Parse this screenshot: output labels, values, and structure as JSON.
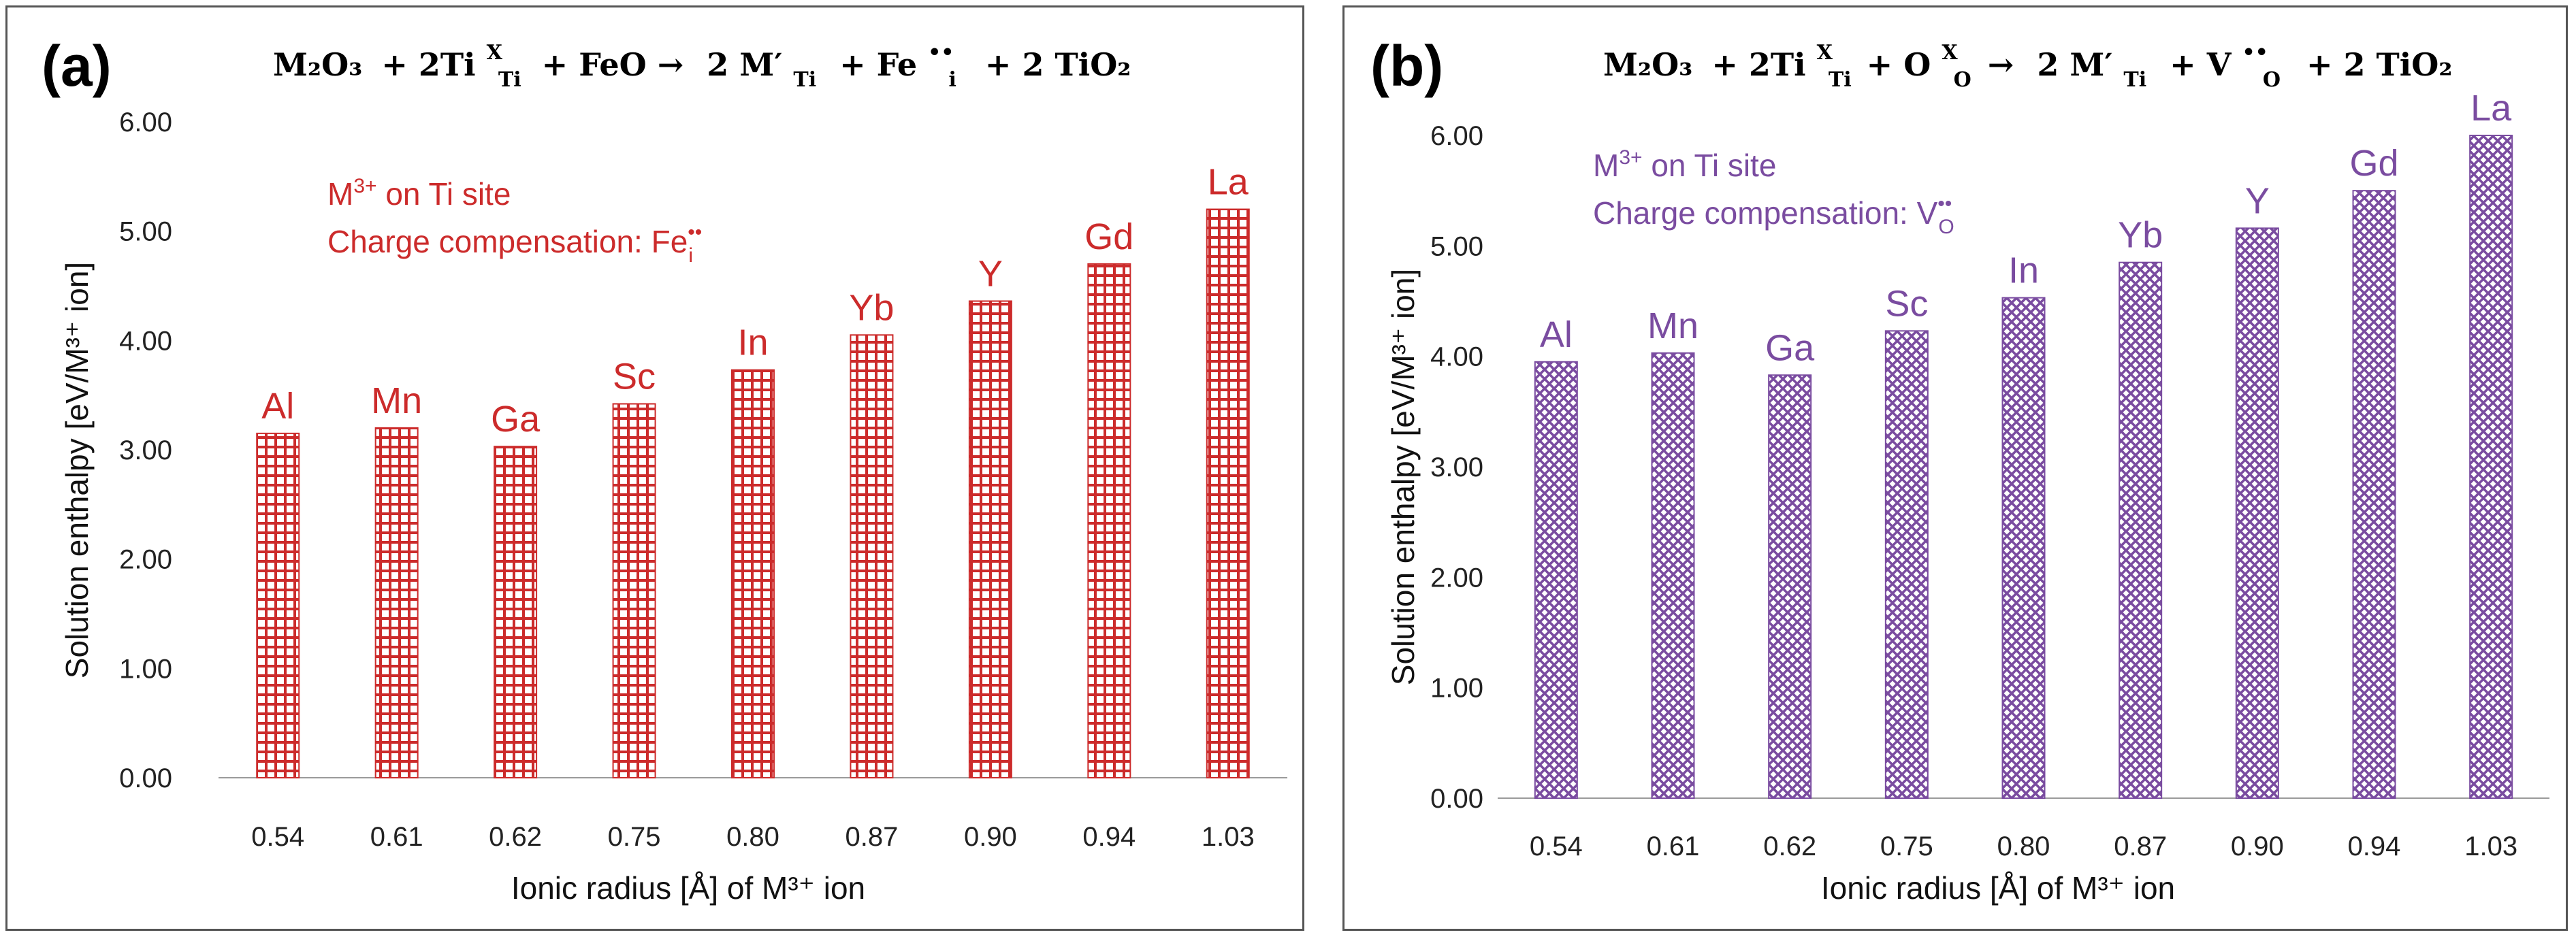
{
  "chart_data": [
    {
      "type": "bar",
      "panel_label": "(a)",
      "equation": {
        "m2o3": "M₂O₃",
        "plus1": "+ 2Ti",
        "ti_sup": "X",
        "ti_sub": "Ti",
        "plus2": "+ FeO →",
        "term1": "2 M′",
        "term1_sub": "Ti",
        "plus3": "+ Fe",
        "fe_sup": "••",
        "fe_sub": "i",
        "tail": "+ 2 TiO₂"
      },
      "annotation_line1_main": "M",
      "annotation_line1_sup": "3+",
      "annotation_line1_rest": " on Ti site",
      "annotation_line2_main": "Charge compensation: Fe",
      "annotation_line2_sup": "••",
      "annotation_line2_sub": "i",
      "categories": [
        "0.54",
        "0.61",
        "0.62",
        "0.75",
        "0.80",
        "0.87",
        "0.90",
        "0.94",
        "1.03"
      ],
      "bar_labels": [
        "Al",
        "Mn",
        "Ga",
        "Sc",
        "In",
        "Yb",
        "Y",
        "Gd",
        "La"
      ],
      "values": [
        3.15,
        3.2,
        3.03,
        3.42,
        3.73,
        4.05,
        4.36,
        4.7,
        5.2
      ],
      "y_ticks": [
        "0.00",
        "1.00",
        "2.00",
        "3.00",
        "4.00",
        "5.00",
        "6.00"
      ],
      "ylim": [
        0,
        6
      ],
      "xlabel": "Ionic radius [Å] of M³⁺ ion",
      "ylabel": "Solution enthalpy [eV/M³⁺ ion]",
      "color": "#cc2b2b",
      "fill_pattern": "grid"
    },
    {
      "type": "bar",
      "panel_label": "(b)",
      "equation": {
        "m2o3": "M₂O₃",
        "plus1": "+ 2Ti",
        "ti_sup": "X",
        "ti_sub": "Ti",
        "plus2": "+ O",
        "o_sup": "X",
        "o_sub": "O",
        "arrow": "→",
        "term1": "2 M′",
        "term1_sub": "Ti",
        "plus3": "+ V",
        "v_sup": "••",
        "v_sub": "O",
        "tail": "+ 2 TiO₂"
      },
      "annotation_line1_main": "M",
      "annotation_line1_sup": "3+",
      "annotation_line1_rest": " on Ti site",
      "annotation_line2_main": "Charge compensation: V",
      "annotation_line2_sup": "••",
      "annotation_line2_sub": "O",
      "categories": [
        "0.54",
        "0.61",
        "0.62",
        "0.75",
        "0.80",
        "0.87",
        "0.90",
        "0.94",
        "1.03"
      ],
      "bar_labels": [
        "Al",
        "Mn",
        "Ga",
        "Sc",
        "In",
        "Yb",
        "Y",
        "Gd",
        "La"
      ],
      "values": [
        3.95,
        4.03,
        3.83,
        4.23,
        4.53,
        4.85,
        5.16,
        5.5,
        6.0
      ],
      "y_ticks": [
        "0.00",
        "1.00",
        "2.00",
        "3.00",
        "4.00",
        "5.00",
        "6.00"
      ],
      "ylim": [
        0,
        6
      ],
      "xlabel": "Ionic radius [Å] of M³⁺ ion",
      "ylabel": "Solution enthalpy [eV/M³⁺ ion]",
      "color": "#7a4ca0",
      "fill_pattern": "crosshatch"
    }
  ]
}
